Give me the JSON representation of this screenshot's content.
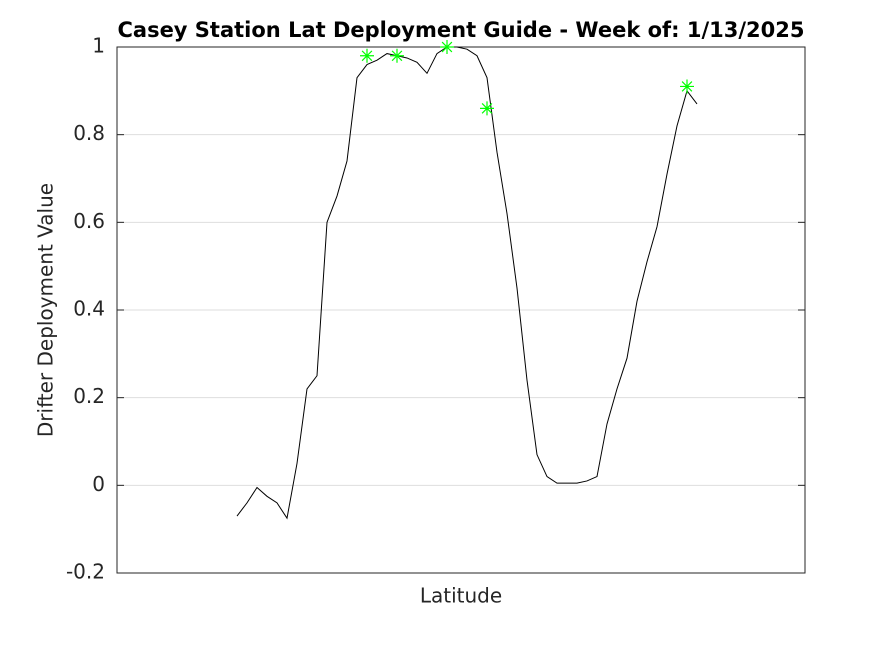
{
  "chart_data": {
    "type": "line",
    "title": "Casey Station Lat Deployment Guide - Week of: 1/13/2025",
    "x_label": "Latitude",
    "y_label": "Drifter Deployment Value",
    "categories": [
      null,
      null,
      null,
      null,
      null,
      null,
      null,
      null,
      null,
      null,
      null,
      null,
      null,
      null,
      null,
      null,
      null,
      null,
      null,
      null,
      null,
      null,
      null,
      null,
      null,
      null,
      null,
      null,
      null,
      null,
      null,
      null,
      null,
      null,
      null,
      null,
      null,
      null,
      null,
      null,
      null,
      null,
      null,
      null,
      null,
      null,
      null,
      null,
      null,
      null,
      null,
      null,
      null,
      null,
      null,
      null,
      null,
      null,
      null,
      null,
      null,
      null,
      null,
      null,
      null,
      null,
      null,
      null,
      null
    ],
    "series": [
      {
        "color": "#000000",
        "marker": "none",
        "values": [
          null,
          null,
          null,
          null,
          null,
          null,
          null,
          null,
          null,
          null,
          null,
          null,
          -0.07,
          -0.04,
          -0.005,
          -0.025,
          -0.04,
          -0.075,
          0.05,
          0.22,
          0.25,
          0.6,
          0.66,
          0.74,
          0.93,
          0.96,
          0.97,
          0.985,
          0.98,
          0.975,
          0.965,
          0.94,
          0.985,
          1.0,
          1.0,
          0.995,
          0.98,
          0.93,
          0.76,
          0.62,
          0.45,
          0.24,
          0.07,
          0.02,
          0.005,
          0.005,
          0.005,
          0.01,
          0.02,
          0.14,
          0.22,
          0.29,
          0.42,
          0.51,
          0.59,
          0.71,
          0.82,
          0.9,
          0.87,
          null,
          null,
          null,
          null,
          null,
          null,
          null,
          null,
          null,
          null
        ]
      },
      {
        "color": "#00ff00",
        "marker": "asterisk",
        "values": [
          null,
          null,
          null,
          null,
          null,
          null,
          null,
          null,
          null,
          null,
          null,
          null,
          null,
          null,
          null,
          null,
          null,
          null,
          null,
          null,
          null,
          null,
          null,
          null,
          null,
          0.98,
          null,
          null,
          0.98,
          null,
          null,
          null,
          null,
          1.0,
          null,
          null,
          null,
          0.86,
          null,
          null,
          null,
          null,
          null,
          null,
          null,
          null,
          null,
          null,
          null,
          null,
          null,
          null,
          null,
          null,
          null,
          null,
          null,
          0.91,
          null,
          null,
          null,
          null,
          null,
          null,
          null,
          null,
          null,
          null,
          null
        ]
      }
    ],
    "ylim": [
      -0.2,
      1
    ],
    "yticks": [
      -0.2,
      0,
      0.2,
      0.4,
      0.6,
      0.8,
      1
    ],
    "grid": true
  }
}
